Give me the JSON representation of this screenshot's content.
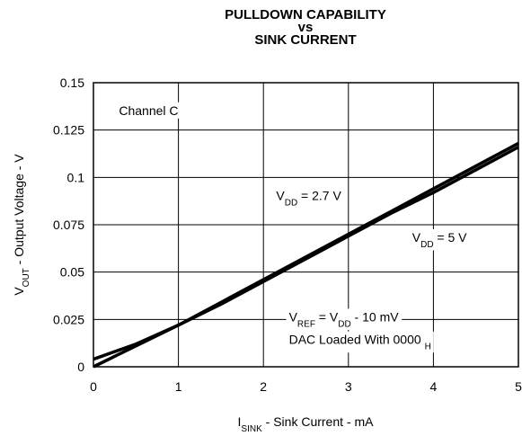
{
  "chart_data": {
    "type": "line",
    "title": [
      "PULLDOWN CAPABILITY",
      "vs",
      "SINK CURRENT"
    ],
    "x_label": [
      {
        "text": "I"
      },
      {
        "text": "SINK",
        "sub": true
      },
      {
        "text": " - Sink Current - mA"
      }
    ],
    "y_label": [
      {
        "text": "V"
      },
      {
        "text": "OUT",
        "sub": true
      },
      {
        "text": " - Output Voltage - V"
      }
    ],
    "x": [
      0,
      0.5,
      1,
      1.5,
      2,
      2.5,
      3,
      3.5,
      4,
      4.5,
      5
    ],
    "series": [
      {
        "color": "#000000",
        "values": [
          0,
          0.011,
          0.022,
          0.034,
          0.046,
          0.058,
          0.07,
          0.082,
          0.094,
          0.106,
          0.118
        ]
      },
      {
        "color": "#000000",
        "values": [
          0.004,
          0.012,
          0.022,
          0.033,
          0.045,
          0.057,
          0.069,
          0.081,
          0.092,
          0.104,
          0.116
        ]
      }
    ],
    "xlim": [
      0,
      5
    ],
    "xticks": [
      0,
      1,
      2,
      3,
      4,
      5
    ],
    "ylim": [
      0,
      0.15
    ],
    "yticks": [
      0,
      0.025,
      0.05,
      0.075,
      0.1,
      0.125,
      0.15
    ],
    "grid": true,
    "annotations": [
      {
        "x": 0.3,
        "y": 0.133,
        "parts": [
          {
            "text": "Channel C"
          }
        ]
      },
      {
        "x": 2.15,
        "y": 0.088,
        "parts": [
          {
            "text": "V"
          },
          {
            "text": "DD",
            "sub": true
          },
          {
            "text": " = 2.7 V"
          }
        ]
      },
      {
        "x": 3.75,
        "y": 0.066,
        "parts": [
          {
            "text": "V"
          },
          {
            "text": "DD",
            "sub": true
          },
          {
            "text": " = 5 V"
          }
        ]
      },
      {
        "x": 2.3,
        "y": 0.024,
        "parts": [
          {
            "text": "V"
          },
          {
            "text": "REF",
            "sub": true
          },
          {
            "text": " = V"
          },
          {
            "text": "DD",
            "sub": true
          },
          {
            "text": " - 10 mV"
          }
        ]
      },
      {
        "x": 2.3,
        "y": 0.012,
        "parts": [
          {
            "text": "DAC Loaded With 0000 "
          },
          {
            "text": "H",
            "sub": true
          }
        ]
      }
    ]
  }
}
